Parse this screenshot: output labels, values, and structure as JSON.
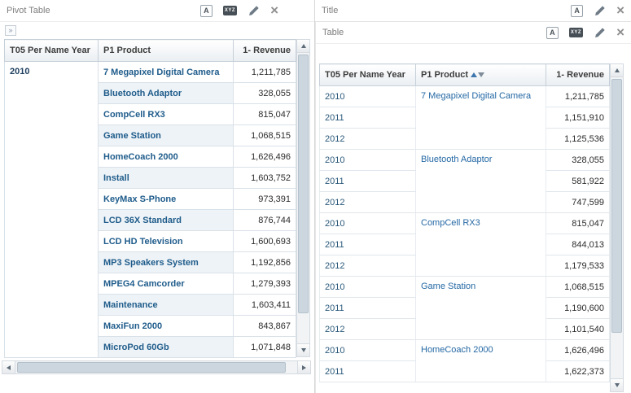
{
  "colors": {
    "link_blue": "#2468a4",
    "pivot_header_navy": "#1c3e5e",
    "sort_accent": "#3f76ad"
  },
  "icons": {
    "format": "A",
    "xyz": "XYZ",
    "close": "×",
    "collapse": "»"
  },
  "pivot_panel": {
    "title": "Pivot Table",
    "columns": {
      "year": "T05 Per Name Year",
      "product": "P1 Product",
      "revenue": "1- Revenue"
    },
    "year": "2010",
    "rows": [
      {
        "product": "7 Megapixel Digital Camera",
        "revenue": "1,211,785"
      },
      {
        "product": "Bluetooth Adaptor",
        "revenue": "328,055"
      },
      {
        "product": "CompCell RX3",
        "revenue": "815,047"
      },
      {
        "product": "Game Station",
        "revenue": "1,068,515"
      },
      {
        "product": "HomeCoach 2000",
        "revenue": "1,626,496"
      },
      {
        "product": "Install",
        "revenue": "1,603,752"
      },
      {
        "product": "KeyMax S-Phone",
        "revenue": "973,391"
      },
      {
        "product": "LCD 36X Standard",
        "revenue": "876,744"
      },
      {
        "product": "LCD HD Television",
        "revenue": "1,600,693"
      },
      {
        "product": "MP3 Speakers System",
        "revenue": "1,192,856"
      },
      {
        "product": "MPEG4 Camcorder",
        "revenue": "1,279,393"
      },
      {
        "product": "Maintenance",
        "revenue": "1,603,411"
      },
      {
        "product": "MaxiFun 2000",
        "revenue": "843,867"
      },
      {
        "product": "MicroPod 60Gb",
        "revenue": "1,071,848"
      }
    ]
  },
  "title_panel": {
    "title": "Title"
  },
  "table_panel": {
    "title": "Table",
    "columns": {
      "year": "T05 Per Name Year",
      "product": "P1 Product",
      "revenue": "1- Revenue"
    },
    "sort_column": "P1 Product",
    "sort_direction": "ascending",
    "groups": [
      {
        "product": "7 Megapixel Digital Camera",
        "rows": [
          {
            "year": "2010",
            "revenue": "1,211,785"
          },
          {
            "year": "2011",
            "revenue": "1,151,910"
          },
          {
            "year": "2012",
            "revenue": "1,125,536"
          }
        ]
      },
      {
        "product": "Bluetooth Adaptor",
        "rows": [
          {
            "year": "2010",
            "revenue": "328,055"
          },
          {
            "year": "2011",
            "revenue": "581,922"
          },
          {
            "year": "2012",
            "revenue": "747,599"
          }
        ]
      },
      {
        "product": "CompCell RX3",
        "rows": [
          {
            "year": "2010",
            "revenue": "815,047"
          },
          {
            "year": "2011",
            "revenue": "844,013"
          },
          {
            "year": "2012",
            "revenue": "1,179,533"
          }
        ]
      },
      {
        "product": "Game Station",
        "rows": [
          {
            "year": "2010",
            "revenue": "1,068,515"
          },
          {
            "year": "2011",
            "revenue": "1,190,600"
          },
          {
            "year": "2012",
            "revenue": "1,101,540"
          }
        ]
      },
      {
        "product": "HomeCoach 2000",
        "rows": [
          {
            "year": "2010",
            "revenue": "1,626,496"
          },
          {
            "year": "2011",
            "revenue": "1,622,373"
          }
        ]
      }
    ]
  }
}
